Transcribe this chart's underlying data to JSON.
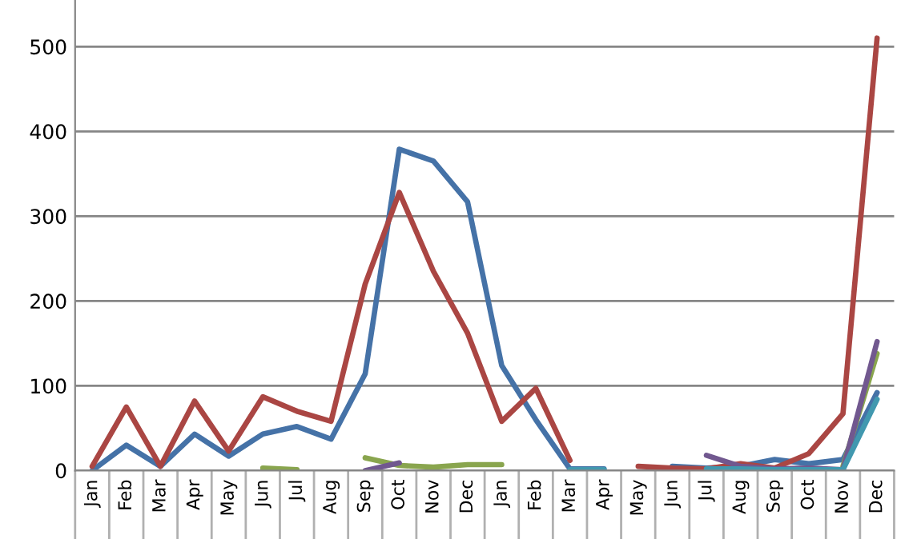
{
  "chart_data": {
    "type": "line",
    "categories": [
      "Jan",
      "Feb",
      "Mar",
      "Apr",
      "May",
      "Jun",
      "Jul",
      "Aug",
      "Sep",
      "Oct",
      "Nov",
      "Dec",
      "Jan",
      "Feb",
      "Mar",
      "Apr",
      "May",
      "Jun",
      "Jul",
      "Aug",
      "Sep",
      "Oct",
      "Nov",
      "Dec"
    ],
    "series": [
      {
        "color": "#4572a7",
        "values": [
          0,
          30,
          5,
          43,
          17,
          43,
          52,
          37,
          114,
          379,
          365,
          317,
          124,
          60,
          2,
          2,
          null,
          5,
          3,
          5,
          13,
          8,
          13,
          92
        ]
      },
      {
        "color": "#aa4643",
        "values": [
          5,
          75,
          5,
          82,
          23,
          87,
          70,
          58,
          220,
          328,
          235,
          162,
          58,
          97,
          12,
          null,
          5,
          3,
          2,
          8,
          3,
          20,
          67,
          510
        ]
      },
      {
        "color": "#89a54e",
        "values": [
          null,
          null,
          null,
          null,
          null,
          3,
          1,
          null,
          15,
          6,
          4,
          7,
          7,
          null,
          null,
          null,
          null,
          null,
          null,
          null,
          null,
          null,
          5,
          138
        ]
      },
      {
        "color": "#71588f",
        "values": [
          null,
          null,
          null,
          null,
          null,
          null,
          null,
          null,
          0,
          9,
          null,
          null,
          null,
          null,
          null,
          null,
          null,
          null,
          18,
          5,
          2,
          3,
          1,
          152
        ]
      },
      {
        "color": "#4198af",
        "values": [
          null,
          null,
          null,
          null,
          null,
          null,
          null,
          null,
          null,
          null,
          null,
          null,
          null,
          null,
          1,
          1,
          null,
          null,
          2,
          2,
          1,
          1,
          1,
          84
        ]
      }
    ],
    "ylim": [
      0,
      555
    ],
    "yticks": [
      0,
      100,
      200,
      300,
      400,
      500
    ],
    "grid": "y",
    "marker": "none",
    "line_style": "solid"
  }
}
